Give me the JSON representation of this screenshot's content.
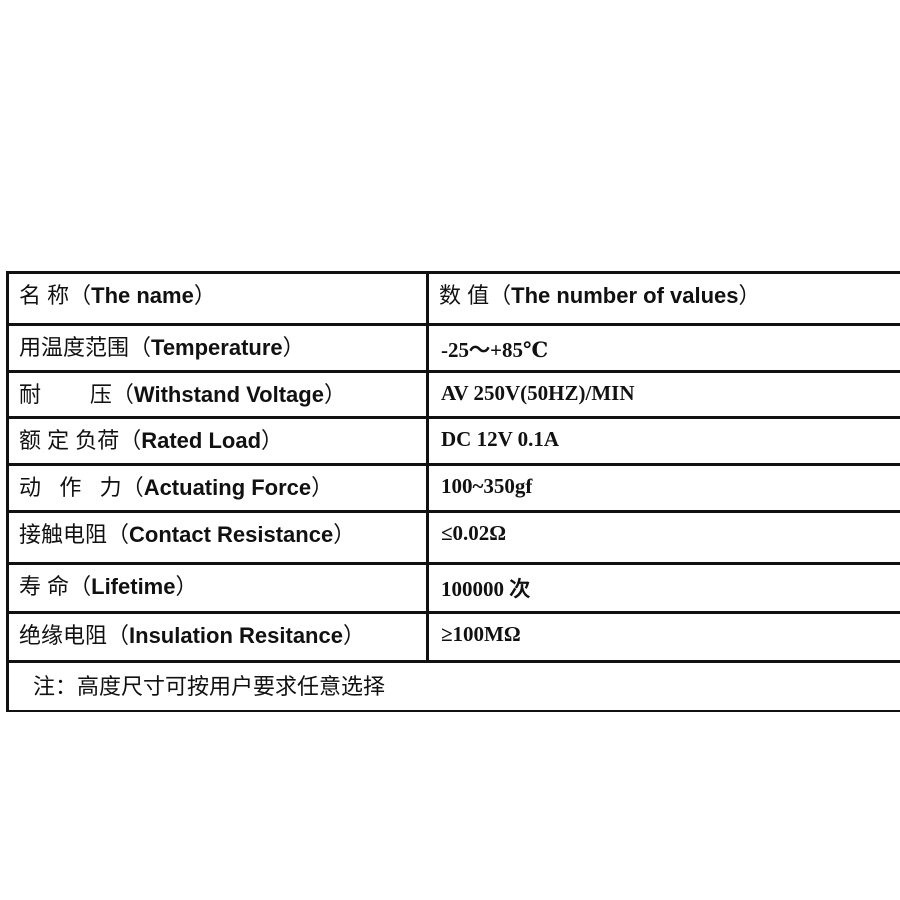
{
  "table": {
    "header": {
      "name_cn": "名 称（",
      "name_en": "The name",
      "value_cn": "数 值（",
      "value_en": "The number of values",
      "close": "）"
    },
    "rows": [
      {
        "name_cn": "用温度范围（",
        "name_en": "Temperature",
        "close": "）",
        "value": "-25～+85℃"
      },
      {
        "name_cn": "耐        压（",
        "name_en": "Withstand Voltage",
        "close": "）",
        "value": "AV 250V(50HZ)/MIN"
      },
      {
        "name_cn": "额 定 负荷（",
        "name_en": "Rated Load",
        "close": "）",
        "value": "DC 12V 0.1A"
      },
      {
        "name_cn": "动   作   力（",
        "name_en": "Actuating Force",
        "close": "）",
        "value": "100~350gf"
      },
      {
        "name_cn": "接触电阻（",
        "name_en": "Contact Resistance",
        "close": "）",
        "value": "≤0.02Ω"
      },
      {
        "name_cn": "寿 命（",
        "name_en": "Lifetime",
        "close": "）",
        "value": "100000 次"
      },
      {
        "name_cn": "绝缘电阻（",
        "name_en": "Insulation Resitance",
        "close": "）",
        "value": "≥100MΩ"
      }
    ],
    "note": "注：高度尺寸可按用户要求任意选择"
  }
}
